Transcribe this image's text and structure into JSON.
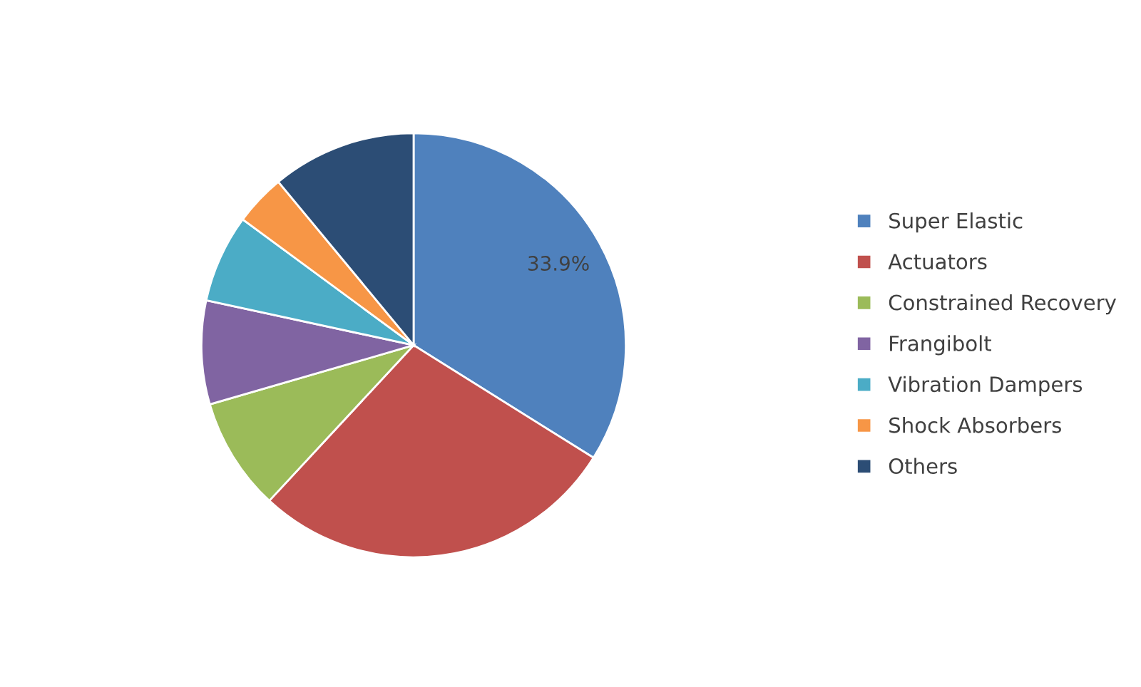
{
  "chart_data": {
    "type": "pie",
    "categories": [
      "Super Elastic",
      "Actuators",
      "Constrained Recovery",
      "Frangibolt",
      "Vibration Dampers",
      "Shock Absorbers",
      "Others"
    ],
    "values": [
      33.9,
      28.0,
      8.6,
      7.9,
      6.7,
      3.9,
      11.0
    ],
    "colors": [
      "#4f81bd",
      "#c0504d",
      "#9bbb59",
      "#8064a2",
      "#4bacc6",
      "#f79646",
      "#2c4d75"
    ],
    "value_labels": [
      "33.9%",
      null,
      null,
      null,
      null,
      null,
      null
    ],
    "legend": "right"
  }
}
